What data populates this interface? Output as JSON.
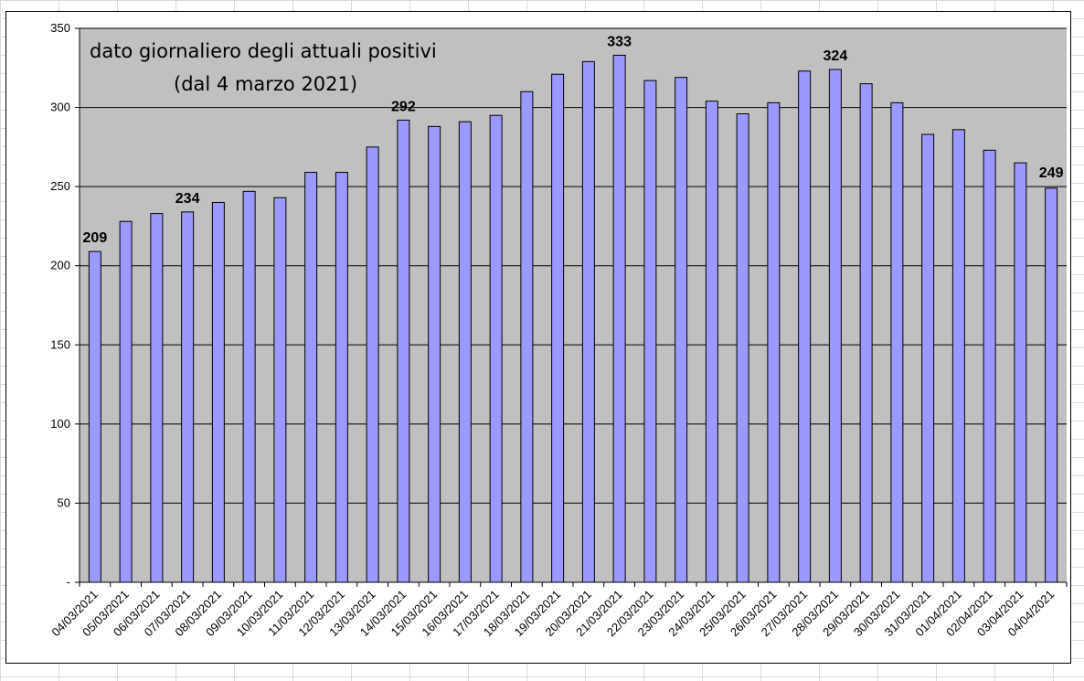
{
  "chart_data": {
    "type": "bar",
    "title": [
      "dato giornaliero degli attuali positivi",
      "(dal 4 marzo 2021)"
    ],
    "categories": [
      "04/03/2021",
      "05/03/2021",
      "06/03/2021",
      "07/03/2021",
      "08/03/2021",
      "09/03/2021",
      "10/03/2021",
      "11/03/2021",
      "12/03/2021",
      "13/03/2021",
      "14/03/2021",
      "15/03/2021",
      "16/03/2021",
      "17/03/2021",
      "18/03/2021",
      "19/03/2021",
      "20/03/2021",
      "21/03/2021",
      "22/03/2021",
      "23/03/2021",
      "24/03/2021",
      "25/03/2021",
      "26/03/2021",
      "27/03/2021",
      "28/03/2021",
      "29/03/2021",
      "30/03/2021",
      "31/03/2021",
      "01/04/2021",
      "02/04/2021",
      "03/04/2021",
      "04/04/2021"
    ],
    "values": [
      209,
      228,
      233,
      234,
      240,
      247,
      243,
      259,
      259,
      275,
      292,
      288,
      291,
      295,
      310,
      321,
      329,
      333,
      317,
      319,
      304,
      296,
      303,
      323,
      324,
      315,
      303,
      283,
      286,
      273,
      265,
      249
    ],
    "data_labels": [
      {
        "index": 0,
        "text": "209"
      },
      {
        "index": 3,
        "text": "234"
      },
      {
        "index": 10,
        "text": "292"
      },
      {
        "index": 17,
        "text": "333"
      },
      {
        "index": 24,
        "text": "324"
      },
      {
        "index": 31,
        "text": "249"
      }
    ],
    "ylim": [
      0,
      350
    ],
    "yticks": [
      0,
      50,
      100,
      150,
      200,
      250,
      300,
      350
    ],
    "ytick_labels": [
      "-",
      "50",
      "100",
      "150",
      "200",
      "250",
      "300",
      "350"
    ],
    "xlabel": "",
    "ylabel": "",
    "grid": true,
    "legend": "none",
    "colors": {
      "bar_fill": "#9999ff",
      "bar_stroke": "#000000",
      "plot_background": "#c0c0c0",
      "gridline": "#000000"
    }
  }
}
